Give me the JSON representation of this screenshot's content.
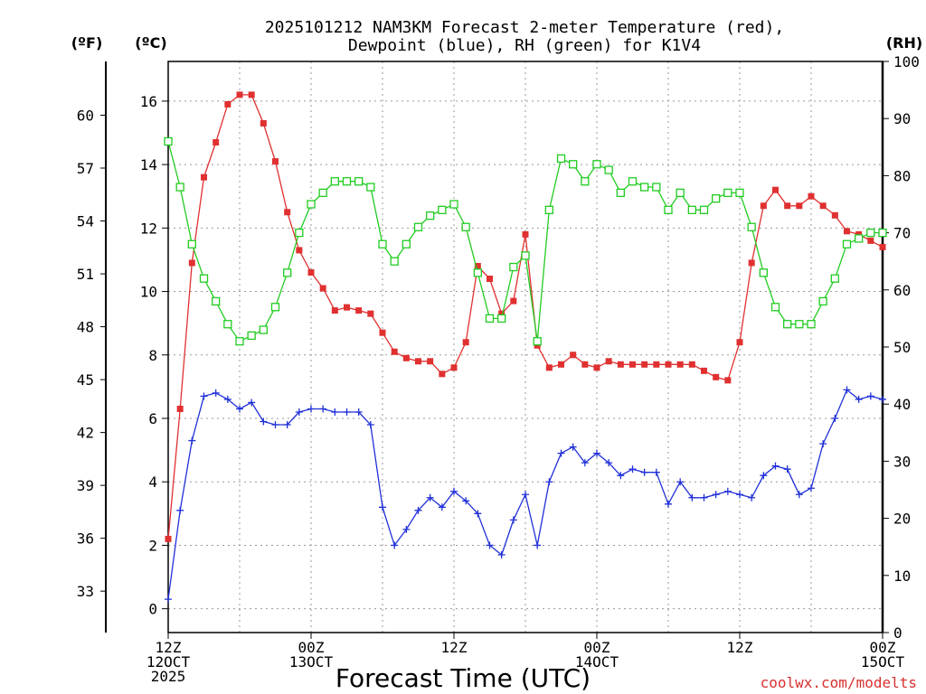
{
  "chart_data": {
    "type": "line",
    "title_lines": [
      "2025101212 NAM3KM Forecast 2-meter Temperature (red),",
      "Dewpoint (blue), RH (green) for K1V4"
    ],
    "xlabel": "Forecast Time (UTC)",
    "credit": "coolwx.com/modelts",
    "units": {
      "fahrenheit": "(ºF)",
      "celsius": "(ºC)",
      "rh": "(RH)"
    },
    "x_hours_range": [
      0,
      60
    ],
    "celsius_axis": {
      "range": [
        -0.75,
        17.25
      ],
      "ticks": [
        0,
        2,
        4,
        6,
        8,
        10,
        12,
        14,
        16
      ]
    },
    "fahrenheit_axis": {
      "ticks": [
        33,
        36,
        39,
        42,
        45,
        48,
        51,
        54,
        57,
        60
      ]
    },
    "rh_axis": {
      "range": [
        0,
        100
      ],
      "ticks": [
        0,
        10,
        20,
        30,
        40,
        50,
        60,
        70,
        80,
        90,
        100
      ]
    },
    "x_ticks": [
      {
        "hour": 0,
        "lines": [
          "12Z",
          "12OCT",
          "2025"
        ]
      },
      {
        "hour": 12,
        "lines": [
          "00Z",
          "13OCT"
        ]
      },
      {
        "hour": 24,
        "lines": [
          "12Z"
        ]
      },
      {
        "hour": 36,
        "lines": [
          "00Z",
          "14OCT"
        ]
      },
      {
        "hour": 48,
        "lines": [
          "12Z"
        ]
      },
      {
        "hour": 60,
        "lines": [
          "00Z",
          "15OCT"
        ]
      }
    ],
    "x": [
      0,
      1,
      2,
      3,
      4,
      5,
      6,
      7,
      8,
      9,
      10,
      11,
      12,
      13,
      14,
      15,
      16,
      17,
      18,
      19,
      20,
      21,
      22,
      23,
      24,
      25,
      26,
      27,
      28,
      29,
      30,
      31,
      32,
      33,
      34,
      35,
      36,
      37,
      38,
      39,
      40,
      41,
      42,
      43,
      44,
      45,
      46,
      47,
      48,
      49,
      50,
      51,
      52,
      53,
      54,
      55,
      56,
      57,
      58,
      59,
      60
    ],
    "series": [
      {
        "name": "Temperature",
        "color": "#e03030",
        "axis": "celsius",
        "marker": "filled-square",
        "values": [
          2.2,
          6.3,
          10.9,
          13.6,
          14.7,
          15.9,
          16.2,
          16.2,
          15.3,
          14.1,
          12.5,
          11.3,
          10.6,
          10.1,
          9.4,
          9.5,
          9.4,
          9.3,
          8.7,
          8.1,
          7.9,
          7.8,
          7.8,
          7.4,
          7.6,
          8.4,
          10.8,
          10.4,
          9.3,
          9.7,
          11.8,
          8.3,
          7.6,
          7.7,
          8.0,
          7.7,
          7.6,
          7.8,
          7.7,
          7.7,
          7.7,
          7.7,
          7.7,
          7.7,
          7.7,
          7.5,
          7.3,
          7.2,
          8.4,
          10.9,
          12.7,
          13.2,
          12.7,
          12.7,
          13.0,
          12.7,
          12.4,
          11.9,
          11.8,
          11.6,
          11.4
        ]
      },
      {
        "name": "Dewpoint",
        "color": "#2030d8",
        "axis": "celsius",
        "marker": "plus",
        "values": [
          0.3,
          3.1,
          5.3,
          6.7,
          6.8,
          6.6,
          6.3,
          6.5,
          5.9,
          5.8,
          5.8,
          6.2,
          6.3,
          6.3,
          6.2,
          6.2,
          6.2,
          5.8,
          3.2,
          2.0,
          2.5,
          3.1,
          3.5,
          3.2,
          3.7,
          3.4,
          3.0,
          2.0,
          1.7,
          2.8,
          3.6,
          2.0,
          4.0,
          4.9,
          5.1,
          4.6,
          4.9,
          4.6,
          4.2,
          4.4,
          4.3,
          4.3,
          3.3,
          4.0,
          3.5,
          3.5,
          3.6,
          3.7,
          3.6,
          3.5,
          4.2,
          4.5,
          4.4,
          3.6,
          3.8,
          5.2,
          6.0,
          6.9,
          6.6,
          6.7,
          6.6
        ]
      },
      {
        "name": "Relative Humidity",
        "color": "#22cc22",
        "axis": "rh",
        "marker": "open-square",
        "values": [
          86,
          78,
          68,
          62,
          58,
          54,
          51,
          52,
          53,
          57,
          63,
          70,
          75,
          77,
          79,
          79,
          79,
          78,
          68,
          65,
          68,
          71,
          73,
          74,
          75,
          71,
          63,
          55,
          55,
          64,
          66,
          51,
          74,
          83,
          82,
          79,
          82,
          81,
          77,
          79,
          78,
          78,
          74,
          77,
          74,
          74,
          76,
          77,
          77,
          71,
          63,
          57,
          54,
          54,
          54,
          58,
          62,
          68,
          69,
          70,
          70
        ]
      }
    ]
  }
}
